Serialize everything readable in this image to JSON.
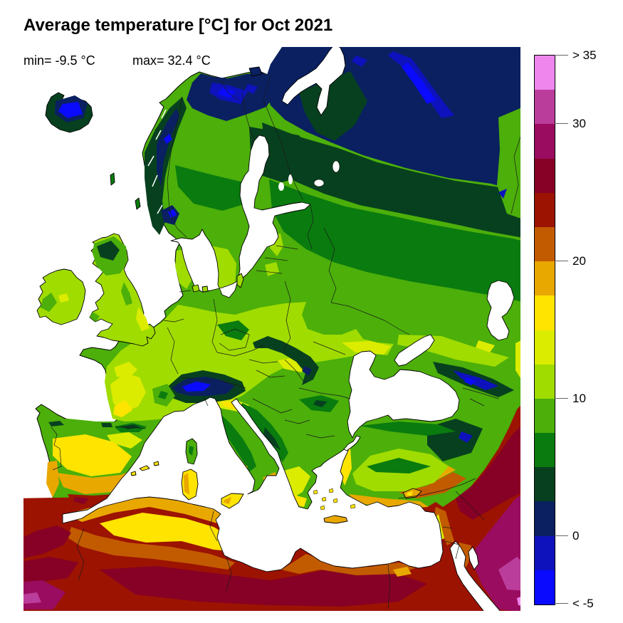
{
  "title": "Average temperature [°C] for Oct 2021",
  "stats": {
    "min_label": "min= -9.5 °C",
    "max_label": "max= 32.4 °C",
    "min_value": -9.5,
    "max_value": 32.4,
    "unit": "°C"
  },
  "chart_data": {
    "type": "heatmap",
    "title": "Average temperature [°C] for Oct 2021",
    "region_shown": "Europe, North Africa and Middle East",
    "sea_fill": "white",
    "legend_position": "right",
    "scale_min": -5,
    "scale_max": 35,
    "scale_step": 2.5,
    "min_annotation": "min= -9.5 °C",
    "max_annotation": "max= 32.4 °C"
  },
  "map": {
    "sea_color": "#FFFFFF",
    "coast_color": "#000000",
    "border_color": "#1a1a1a"
  },
  "colorbar": {
    "ticks": [
      {
        "label": "> 35",
        "value": 35
      },
      {
        "label": "30",
        "value": 30
      },
      {
        "label": "20",
        "value": 20
      },
      {
        "label": "10",
        "value": 10
      },
      {
        "label": "0",
        "value": 0
      },
      {
        "label": "< -5",
        "value": -5
      }
    ],
    "palette_top_to_bottom": [
      {
        "from": 32.5,
        "to": 35,
        "color": "#EE86EE"
      },
      {
        "from": 30,
        "to": 32.5,
        "color": "#BB3D9B"
      },
      {
        "from": 27.5,
        "to": 30,
        "color": "#9A0C5F"
      },
      {
        "from": 25,
        "to": 27.5,
        "color": "#870025"
      },
      {
        "from": 22.5,
        "to": 25,
        "color": "#9C1302"
      },
      {
        "from": 20,
        "to": 22.5,
        "color": "#C25B00"
      },
      {
        "from": 17.5,
        "to": 20,
        "color": "#E9A800"
      },
      {
        "from": 15,
        "to": 17.5,
        "color": "#FFE400"
      },
      {
        "from": 12.5,
        "to": 15,
        "color": "#DCEC00"
      },
      {
        "from": 10,
        "to": 12.5,
        "color": "#A0DC00"
      },
      {
        "from": 7.5,
        "to": 10,
        "color": "#4CAF0A"
      },
      {
        "from": 5,
        "to": 7.5,
        "color": "#0A7B0F"
      },
      {
        "from": 2.5,
        "to": 5,
        "color": "#07401F"
      },
      {
        "from": 0,
        "to": 2.5,
        "color": "#0A2061"
      },
      {
        "from": -2.5,
        "to": 0,
        "color": "#0D12BD"
      },
      {
        "from": -5,
        "to": -2.5,
        "color": "#0A0AFF"
      }
    ]
  }
}
